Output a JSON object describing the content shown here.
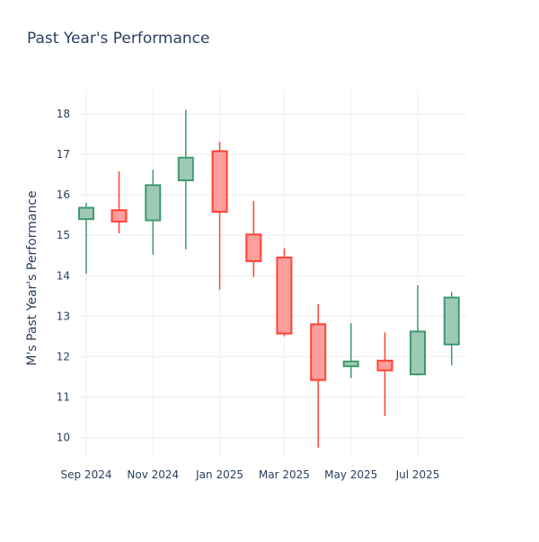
{
  "chart_data": {
    "type": "candlestick",
    "title": "Past Year's Performance",
    "xlabel": "",
    "ylabel": "M's Past Year's Performance",
    "ylim": [
      9.5,
      18.6
    ],
    "yticks": [
      10,
      11,
      12,
      13,
      14,
      15,
      16,
      17,
      18
    ],
    "xtick_labels": [
      "Sep 2024",
      "Nov 2024",
      "Jan 2025",
      "Mar 2025",
      "May 2025",
      "Jul 2025"
    ],
    "grid": true,
    "legend": "none",
    "colors": {
      "increasing": "#3d9970",
      "increasing_fill": "#9ecab5",
      "decreasing": "#ff4136",
      "decreasing_fill": "#ff9f9b",
      "axis_text": "#2a3f5f",
      "grid": "#eeeeee"
    },
    "candles": [
      {
        "x": "2024-09-01",
        "open": 15.4,
        "high": 15.8,
        "low": 14.05,
        "close": 15.68
      },
      {
        "x": "2024-10-01",
        "open": 15.62,
        "high": 16.58,
        "low": 15.05,
        "close": 15.34
      },
      {
        "x": "2024-11-01",
        "open": 15.37,
        "high": 16.62,
        "low": 14.52,
        "close": 16.24
      },
      {
        "x": "2024-12-01",
        "open": 16.36,
        "high": 18.1,
        "low": 14.65,
        "close": 16.92
      },
      {
        "x": "2025-01-01",
        "open": 17.08,
        "high": 17.31,
        "low": 13.66,
        "close": 15.58
      },
      {
        "x": "2025-02-01",
        "open": 15.02,
        "high": 15.85,
        "low": 13.97,
        "close": 14.36
      },
      {
        "x": "2025-03-01",
        "open": 14.45,
        "high": 14.68,
        "low": 12.5,
        "close": 12.57
      },
      {
        "x": "2025-04-01",
        "open": 12.8,
        "high": 13.3,
        "low": 9.75,
        "close": 11.42
      },
      {
        "x": "2025-05-01",
        "open": 11.76,
        "high": 12.83,
        "low": 11.47,
        "close": 11.88
      },
      {
        "x": "2025-06-01",
        "open": 11.9,
        "high": 12.6,
        "low": 10.53,
        "close": 11.66
      },
      {
        "x": "2025-07-01",
        "open": 11.56,
        "high": 13.76,
        "low": 11.53,
        "close": 12.62
      },
      {
        "x": "2025-08-01",
        "open": 12.3,
        "high": 13.6,
        "low": 11.78,
        "close": 13.46
      }
    ]
  }
}
